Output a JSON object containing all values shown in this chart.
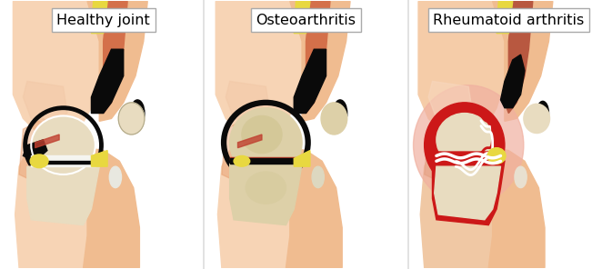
{
  "panels": [
    {
      "label": "Healthy joint"
    },
    {
      "label": "Osteoarthritis"
    },
    {
      "label": "Rheumatoid arthritis"
    }
  ],
  "background_color": "#ffffff",
  "label_box_color": "#ffffff",
  "label_box_edge": "#aaaaaa",
  "label_fontsize": 11.5,
  "skin_light": "#f7d4b5",
  "skin_mid": "#f0bc90",
  "skin_dark": "#e8a070",
  "skin_inner": "#f2c9a8",
  "muscle_orange": "#d4704a",
  "muscle_red": "#c05030",
  "muscle_stripe": "#b84030",
  "black_col": "#0a0a0a",
  "bone_white": "#f0ebe0",
  "bone_cream": "#e8dcc0",
  "bone_oa": "#ddd0a8",
  "cartilage_white": "#f5f5f0",
  "cartilage_gray": "#c8c8c8",
  "yellow_fat": "#e8d840",
  "yellow_light": "#f0e060",
  "white_col": "#ffffff",
  "red_inflam": "#cc1818",
  "red_dark": "#991010",
  "red_light": "#e87070",
  "pink_inflam": "#f0b0a0",
  "gray_bone": "#d8d8d0",
  "divider_color": "#dddddd"
}
